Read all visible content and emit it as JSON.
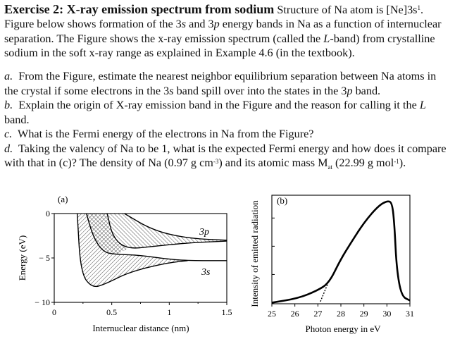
{
  "exercise": {
    "title": "Exercise 2: X-ray emission spectrum from sodium",
    "intro_1": "Structure of Na atom is [Ne]3s",
    "intro_1_sup": "1",
    "intro_1_end": ".",
    "line2a": "Figure below shows formation of the 3",
    "line2b": "s",
    "line2c": " and 3",
    "line2d": "p",
    "line2e": " energy bands in Na as a function of internuclear",
    "line3a": "separation. The Figure shows the x-ray emission spectrum (called the ",
    "line3b": "L",
    "line3c": "-band) from crystalline",
    "line4": "sodium in the soft x-ray range as explained in Example 4.6 (in the textbook).",
    "qa_label": "a.",
    "qa_1": "From the Figure, estimate the nearest neighbor equilibrium separation between Na atoms in",
    "qa_2a": "the crystal if some electrons in the 3",
    "qa_2b": "s",
    "qa_2c": " band spill over into the states in the 3",
    "qa_2d": "p",
    "qa_2e": " band.",
    "qb_label": "b.",
    "qb_1a": "Explain the origin of X-ray emission band in the Figure and the reason for calling it the ",
    "qb_1b": "L",
    "qb_2": "band.",
    "qc_label": "c.",
    "qc_1": "What is the Fermi energy of the electrons in Na from the Figure?",
    "qd_label": "d.",
    "qd_1": "Taking the valency of Na to be 1, what is the expected Fermi energy and how does it compare",
    "qd_2a": "with that in (c)? The density of Na (0.97 g cm",
    "qd_2b": "-3",
    "qd_2c": ") and its atomic mass M",
    "qd_2d": "at",
    "qd_2e": " (22.99 g mol",
    "qd_2f": "-1",
    "qd_2g": ")."
  },
  "chart_data": [
    {
      "type": "area",
      "panel_label": "(a)",
      "xlabel": "Internuclear distance (nm)",
      "ylabel": "Energy (eV)",
      "xlim": [
        0,
        1.5
      ],
      "ylim": [
        -10,
        0
      ],
      "xticks": [
        "0",
        "0.5",
        "1",
        "1.5"
      ],
      "yticks": [
        "0",
        "− 5",
        "− 10"
      ],
      "band_labels": {
        "p": "3p",
        "s": "3s"
      },
      "series": [
        {
          "name": "3s",
          "lower": [
            [
              0.2,
              0
            ],
            [
              0.23,
              -6.7
            ],
            [
              0.33,
              -8.4
            ],
            [
              0.45,
              -7.9
            ],
            [
              0.65,
              -6.6
            ],
            [
              0.96,
              -5.6
            ],
            [
              1.16,
              -5.3
            ]
          ],
          "upper": [
            [
              0.28,
              0
            ],
            [
              0.34,
              -2.7
            ],
            [
              0.43,
              -4.4
            ],
            [
              0.55,
              -4.6
            ],
            [
              0.75,
              -4.7
            ],
            [
              0.96,
              -5.1
            ],
            [
              1.16,
              -5.3
            ],
            [
              1.5,
              -5.3
            ]
          ]
        },
        {
          "name": "3p",
          "lower": [
            [
              0.46,
              0
            ],
            [
              0.51,
              -2.7
            ],
            [
              0.63,
              -4.0
            ],
            [
              0.86,
              -3.7
            ],
            [
              1.16,
              -3.3
            ],
            [
              1.5,
              -3.1
            ]
          ],
          "upper": [
            [
              0.61,
              0
            ],
            [
              0.86,
              -1.9
            ],
            [
              1.16,
              -2.8
            ],
            [
              1.5,
              -3.0
            ]
          ]
        }
      ]
    },
    {
      "type": "line",
      "panel_label": "(b)",
      "xlabel": "Photon energy in eV",
      "ylabel": "Intensity of emitted radiation",
      "xlim": [
        25,
        31
      ],
      "ylim": [
        0,
        1
      ],
      "xticks": [
        "25",
        "26",
        "27",
        "28",
        "29",
        "30",
        "31"
      ],
      "yticks_unlabeled": [
        0.27,
        0.53,
        0.79
      ],
      "series": [
        {
          "points": [
            [
              25.0,
              0.01
            ],
            [
              26.13,
              0.05
            ],
            [
              26.96,
              0.12
            ],
            [
              27.48,
              0.19
            ],
            [
              27.97,
              0.4
            ],
            [
              28.4,
              0.55
            ],
            [
              29.01,
              0.75
            ],
            [
              29.62,
              0.9
            ],
            [
              30.02,
              0.95
            ],
            [
              30.23,
              0.93
            ],
            [
              30.33,
              0.72
            ],
            [
              30.42,
              0.33
            ],
            [
              30.63,
              0.07
            ],
            [
              31.0,
              0.03
            ]
          ]
        },
        {
          "style": "dashed",
          "points": [
            [
              27.11,
              0.02
            ],
            [
              27.42,
              0.18
            ]
          ]
        }
      ]
    }
  ]
}
